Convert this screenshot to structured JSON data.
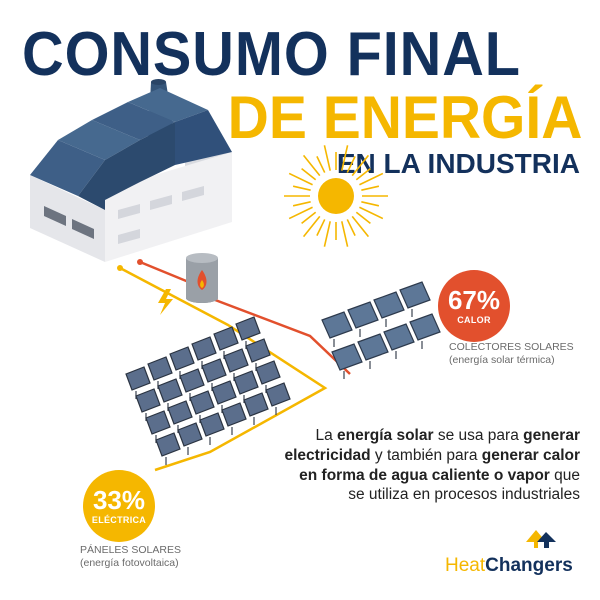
{
  "title": {
    "line1": "CONSUMO FINAL",
    "line2": "DE ENERGÍA",
    "line3": "EN LA INDUSTRIA"
  },
  "colectores": {
    "percent": "67%",
    "label": "CALOR",
    "caption_line1": "COLECTORES SOLARES",
    "caption_line2": "(energía solar térmica)"
  },
  "paneles": {
    "percent": "33%",
    "label": "ELÉCTRICA",
    "caption_line1": "PÁNELES SOLARES",
    "caption_line2": "(energía fotovoltaica)"
  },
  "description": {
    "p1": "La ",
    "b1": "energía solar",
    "p2": " se usa para ",
    "b2": "generar electricidad",
    "p3": " y también para ",
    "b3": "generar calor en forma de agua caliente o vapor",
    "p4": " que se utiliza en procesos industriales"
  },
  "brand": {
    "part1": "Heat",
    "part2": "Changers"
  },
  "colors": {
    "navy": "#13315c",
    "yellow": "#f5b700",
    "red": "#e2502d",
    "panel": "#5b6e8c",
    "building": "#e9e9ec",
    "roof": "#3e5f87"
  },
  "icons": [
    "sun-icon",
    "factory-icon",
    "water-tank-icon",
    "flame-icon",
    "lightning-icon",
    "brand-logo-icon"
  ]
}
